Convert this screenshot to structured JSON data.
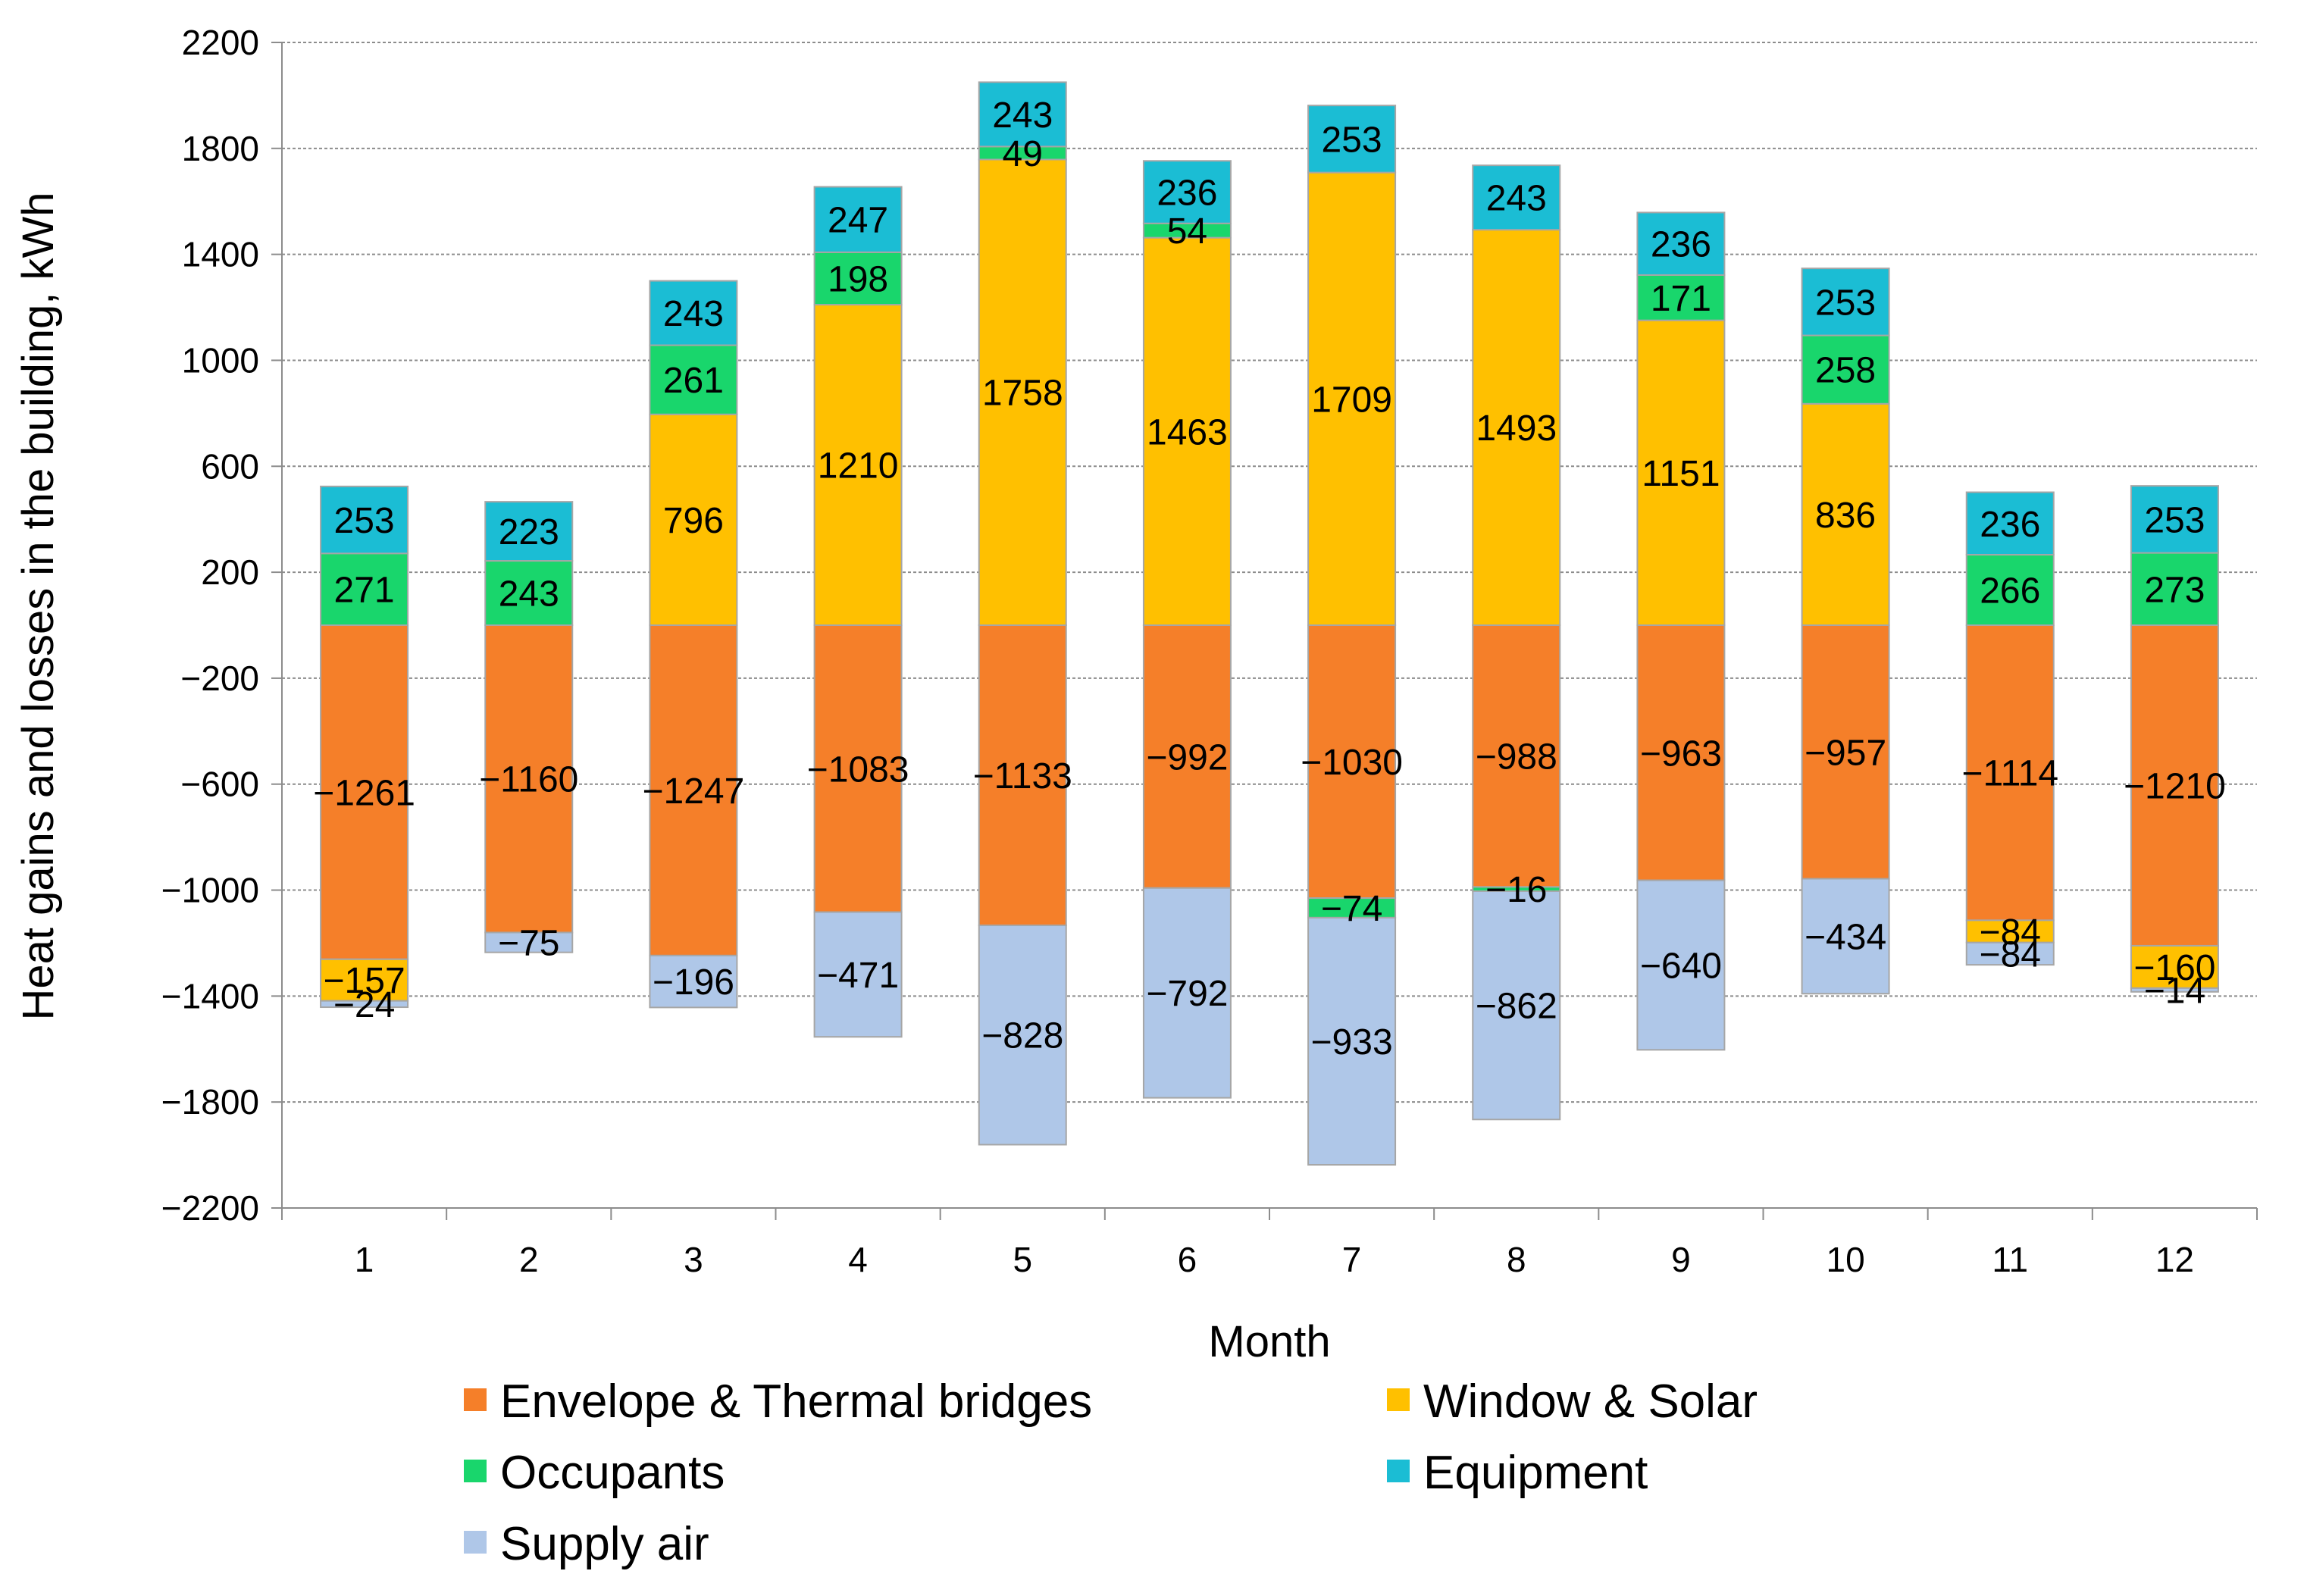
{
  "chart_data": {
    "type": "bar",
    "stacked": true,
    "title": "",
    "xlabel": "Month",
    "ylabel": "Heat gains and losses in the building, kWh",
    "ylim": [
      -2200,
      2200
    ],
    "ytick_step": 400,
    "grid": true,
    "legend_position": "bottom",
    "categories": [
      "1",
      "2",
      "3",
      "4",
      "5",
      "6",
      "7",
      "8",
      "9",
      "10",
      "11",
      "12"
    ],
    "series": [
      {
        "name": "Envelope & Thermal bridges",
        "color": "#F57F29",
        "values": [
          -1261,
          -1160,
          -1247,
          -1083,
          -1133,
          -992,
          -1030,
          -988,
          -963,
          -957,
          -1114,
          -1210
        ]
      },
      {
        "name": "Window & Solar",
        "color": "#FFC000",
        "values": [
          -157,
          null,
          796,
          1210,
          1758,
          1463,
          1709,
          1493,
          1151,
          836,
          -84,
          -160
        ]
      },
      {
        "name": "Occupants",
        "color": "#19D66C",
        "values": [
          271,
          243,
          261,
          198,
          49,
          54,
          -74,
          -16,
          171,
          258,
          266,
          273
        ]
      },
      {
        "name": "Equipment",
        "color": "#1BBDD4",
        "values": [
          253,
          223,
          243,
          247,
          243,
          236,
          253,
          243,
          236,
          253,
          236,
          253
        ]
      },
      {
        "name": "Supply air",
        "color": "#AFC7E8",
        "values": [
          -24,
          -75,
          -196,
          -471,
          -828,
          -792,
          -933,
          -862,
          -640,
          -434,
          -84,
          -14
        ]
      }
    ],
    "legend_entries": [
      "Envelope & Thermal bridges",
      "Window & Solar",
      "Occupants",
      "Equipment",
      "Supply air"
    ],
    "ytick_labels": [
      "2200",
      "1800",
      "1400",
      "1000",
      "600",
      "200",
      "−200",
      "−600",
      "−1000",
      "−1400",
      "−1800",
      "−2200"
    ],
    "data_labels": [
      [
        "−1261",
        "−157",
        "271",
        "253",
        "−24"
      ],
      [
        "−1160",
        "",
        "243",
        "223",
        "−75"
      ],
      [
        "−1247",
        "796",
        "261",
        "243",
        "−196"
      ],
      [
        "−1083",
        "1210",
        "198",
        "247",
        "−471"
      ],
      [
        "−1133",
        "1758",
        "49",
        "243",
        "−828"
      ],
      [
        "−992",
        "1463",
        "54",
        "236",
        "−792"
      ],
      [
        "−1030",
        "1709",
        "−74",
        "253",
        "−933"
      ],
      [
        "−988",
        "1493",
        "−16",
        "243",
        "−862"
      ],
      [
        "−963",
        "1151",
        "171",
        "236",
        "−640"
      ],
      [
        "−957",
        "836",
        "258",
        "253",
        "−434"
      ],
      [
        "−1114",
        "−84",
        "266",
        "236",
        "−84"
      ],
      [
        "−1210",
        "−160",
        "273",
        "253",
        "−14"
      ]
    ]
  }
}
